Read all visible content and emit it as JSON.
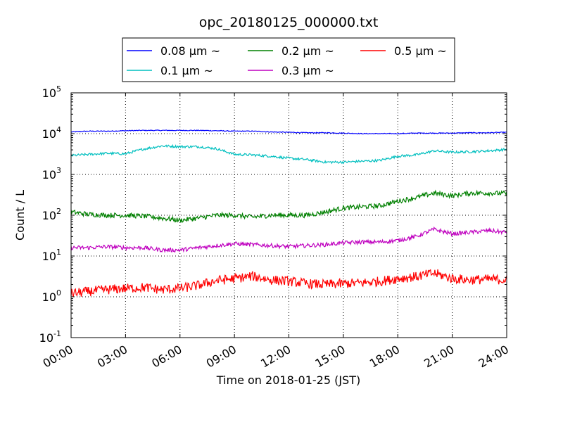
{
  "chart_data": {
    "type": "line",
    "title": "opc_20180125_000000.txt",
    "xlabel": "Time on 2018-01-25 (JST)",
    "ylabel": "Count / L",
    "yscale": "log",
    "ylim": [
      0.1,
      100000
    ],
    "xlim": [
      "2018-01-25 00:00",
      "2018-01-26 00:00"
    ],
    "x_ticks": [
      "00:00",
      "03:00",
      "06:00",
      "09:00",
      "12:00",
      "15:00",
      "18:00",
      "21:00",
      "24:00"
    ],
    "y_ticks": [
      {
        "base": "10",
        "exp": "-1",
        "value": 0.1
      },
      {
        "base": "10",
        "exp": "0",
        "value": 1
      },
      {
        "base": "10",
        "exp": "1",
        "value": 10
      },
      {
        "base": "10",
        "exp": "2",
        "value": 100
      },
      {
        "base": "10",
        "exp": "3",
        "value": 1000
      },
      {
        "base": "10",
        "exp": "4",
        "value": 10000
      },
      {
        "base": "10",
        "exp": "5",
        "value": 100000
      }
    ],
    "grid": true,
    "legend_placement": "top-center",
    "x": [
      "00:00",
      "01:00",
      "02:00",
      "03:00",
      "04:00",
      "05:00",
      "06:00",
      "07:00",
      "08:00",
      "09:00",
      "10:00",
      "11:00",
      "12:00",
      "13:00",
      "14:00",
      "15:00",
      "16:00",
      "17:00",
      "18:00",
      "19:00",
      "20:00",
      "21:00",
      "22:00",
      "23:00",
      "24:00"
    ],
    "series": [
      {
        "name": "0.08 μm ~",
        "color": "#0000ff",
        "noise": 0.01,
        "values": [
          11000,
          11500,
          11500,
          11800,
          12000,
          12000,
          12000,
          12000,
          11800,
          11500,
          11500,
          11000,
          10800,
          10500,
          10500,
          10300,
          10000,
          10000,
          10000,
          10300,
          10300,
          10300,
          10500,
          10500,
          10800
        ]
      },
      {
        "name": "0.1 μm ~",
        "color": "#00bfbf",
        "noise": 0.03,
        "values": [
          2900,
          3100,
          3300,
          3200,
          4200,
          5000,
          4800,
          4800,
          4300,
          3100,
          3000,
          2800,
          2500,
          2300,
          2000,
          2000,
          2100,
          2200,
          2800,
          3000,
          3800,
          3500,
          3600,
          3800,
          4100
        ]
      },
      {
        "name": "0.2 μm ~",
        "color": "#008000",
        "noise": 0.06,
        "values": [
          120,
          105,
          100,
          100,
          95,
          85,
          75,
          85,
          100,
          100,
          90,
          100,
          100,
          100,
          120,
          150,
          160,
          170,
          220,
          270,
          350,
          300,
          350,
          350,
          340
        ]
      },
      {
        "name": "0.3 μm ~",
        "color": "#bf00bf",
        "noise": 0.05,
        "values": [
          16,
          16,
          17,
          16,
          16,
          14,
          14,
          16,
          18,
          20,
          19,
          18,
          17,
          18,
          19,
          21,
          22,
          22,
          24,
          30,
          45,
          35,
          38,
          42,
          38
        ]
      },
      {
        "name": "0.5 μm ~",
        "color": "#ff0000",
        "noise": 0.12,
        "values": [
          1.2,
          1.35,
          1.5,
          1.6,
          1.7,
          1.5,
          1.6,
          1.9,
          2.5,
          2.8,
          3.2,
          2.6,
          2.4,
          2.1,
          2.0,
          2.1,
          2.2,
          2.4,
          2.8,
          3.1,
          3.8,
          2.8,
          2.6,
          2.7,
          2.6
        ]
      }
    ]
  }
}
